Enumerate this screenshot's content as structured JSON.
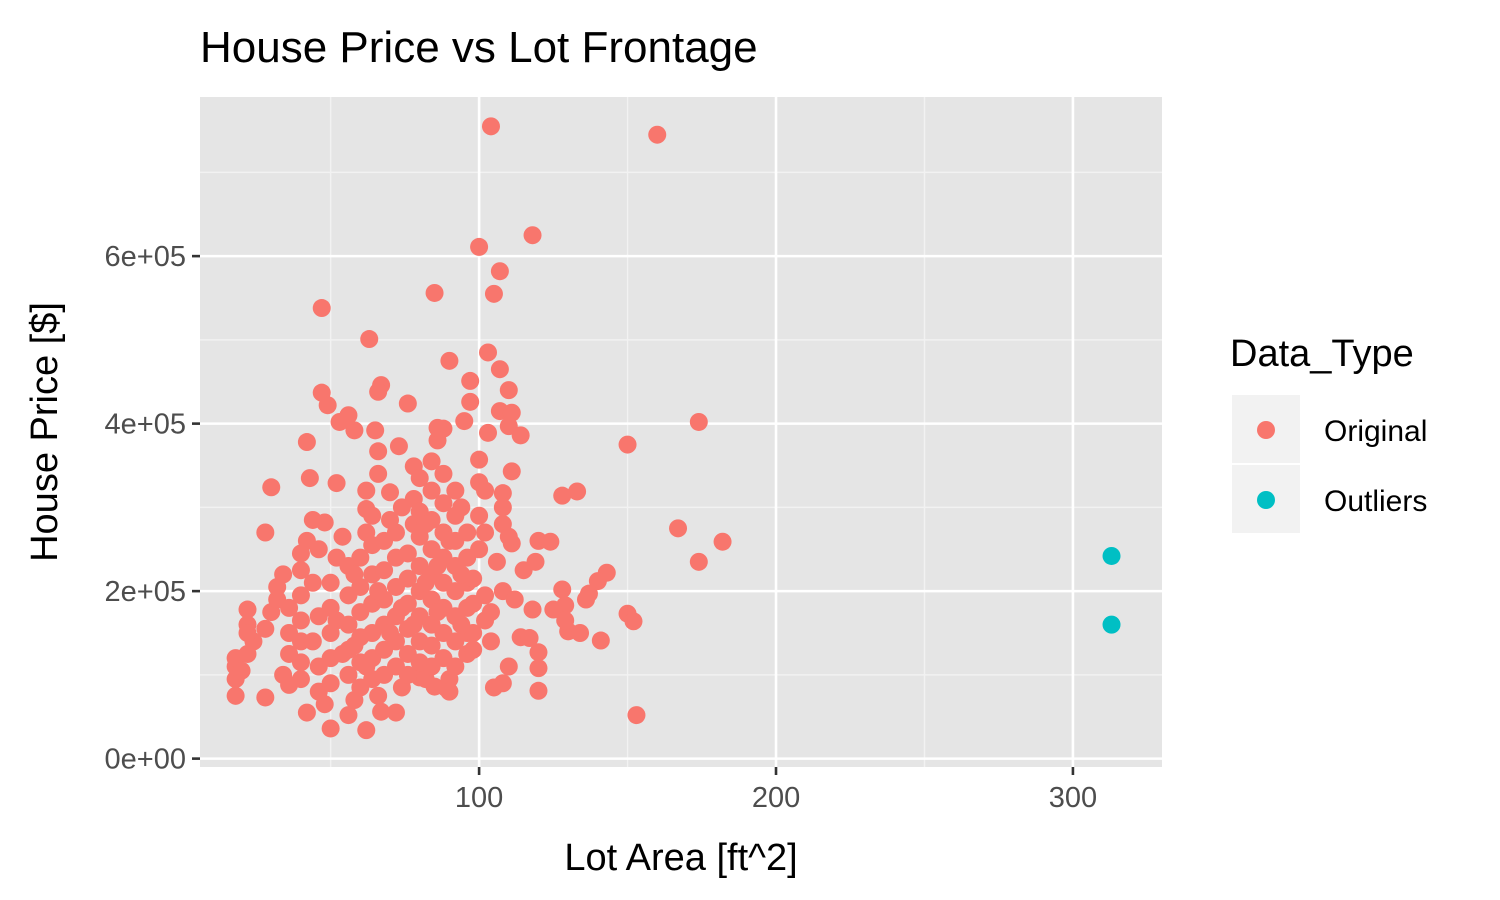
{
  "chart_data": {
    "type": "scatter",
    "title": "House Price vs Lot Frontage",
    "xlabel": "Lot Area [ft^2]",
    "ylabel": "House Price [$]",
    "xlim": [
      6,
      330
    ],
    "ylim": [
      -10000,
      790000
    ],
    "x_ticks": [
      100,
      200,
      300
    ],
    "x_tick_labels": [
      "100",
      "200",
      "300"
    ],
    "y_ticks": [
      0,
      200000,
      400000,
      600000
    ],
    "y_tick_labels": [
      "0e+00",
      "2e+05",
      "4e+05",
      "6e+05"
    ],
    "grid": true,
    "background": "#e5e5e5",
    "legend": {
      "title": "Data_Type",
      "placement": "right",
      "entries": [
        {
          "label": "Original",
          "color": "#f8766d"
        },
        {
          "label": "Outliers",
          "color": "#00bfc4"
        }
      ]
    },
    "series": [
      {
        "name": "Original",
        "color": "#f8766d",
        "points": [
          [
            104,
            755000
          ],
          [
            160,
            745000
          ],
          [
            118,
            625000
          ],
          [
            100,
            611000
          ],
          [
            107,
            582000
          ],
          [
            85,
            556000
          ],
          [
            105,
            555000
          ],
          [
            47,
            538000
          ],
          [
            63,
            501000
          ],
          [
            103,
            485000
          ],
          [
            90,
            475000
          ],
          [
            107,
            465000
          ],
          [
            97,
            451000
          ],
          [
            67,
            446000
          ],
          [
            110,
            440000
          ],
          [
            66,
            438000
          ],
          [
            47,
            437000
          ],
          [
            97,
            426000
          ],
          [
            76,
            424000
          ],
          [
            49,
            422000
          ],
          [
            107,
            415000
          ],
          [
            111,
            413000
          ],
          [
            56,
            410000
          ],
          [
            95,
            403000
          ],
          [
            174,
            402000
          ],
          [
            53,
            402000
          ],
          [
            110,
            397000
          ],
          [
            88,
            394000
          ],
          [
            58,
            392000
          ],
          [
            65,
            392000
          ],
          [
            103,
            389000
          ],
          [
            114,
            386000
          ],
          [
            42,
            378000
          ],
          [
            150,
            375000
          ],
          [
            73,
            373000
          ],
          [
            66,
            367000
          ],
          [
            100,
            357000
          ],
          [
            111,
            343000
          ],
          [
            78,
            349000
          ],
          [
            43,
            335000
          ],
          [
            52,
            329000
          ],
          [
            30,
            324000
          ],
          [
            133,
            319000
          ],
          [
            128,
            314000
          ],
          [
            108,
            317000
          ],
          [
            167,
            275000
          ],
          [
            182,
            259000
          ],
          [
            174,
            235000
          ],
          [
            28,
            270000
          ],
          [
            48,
            282000
          ],
          [
            62,
            298000
          ],
          [
            120,
            260000
          ],
          [
            124,
            259000
          ],
          [
            115,
            225000
          ],
          [
            119,
            235000
          ],
          [
            111,
            257000
          ],
          [
            128,
            202000
          ],
          [
            143,
            222000
          ],
          [
            140,
            212000
          ],
          [
            137,
            197000
          ],
          [
            129,
            183000
          ],
          [
            125,
            178000
          ],
          [
            118,
            178000
          ],
          [
            136,
            190000
          ],
          [
            150,
            173000
          ],
          [
            152,
            164000
          ],
          [
            130,
            152000
          ],
          [
            129,
            165000
          ],
          [
            134,
            150000
          ],
          [
            141,
            141000
          ],
          [
            153,
            52000
          ],
          [
            120,
            81000
          ],
          [
            120,
            108000
          ],
          [
            120,
            127000
          ],
          [
            108,
            90000
          ],
          [
            110,
            110000
          ],
          [
            114,
            145000
          ],
          [
            117,
            144000
          ],
          [
            105,
            85000
          ],
          [
            28,
            73000
          ],
          [
            42,
            55000
          ],
          [
            50,
            36000
          ],
          [
            62,
            34000
          ],
          [
            56,
            52000
          ],
          [
            72,
            55000
          ],
          [
            67,
            56000
          ],
          [
            89,
            84000
          ],
          [
            80,
            97000
          ],
          [
            85,
            86000
          ],
          [
            18,
            75000
          ],
          [
            18,
            95000
          ],
          [
            18,
            110000
          ],
          [
            18,
            120000
          ],
          [
            20,
            105000
          ],
          [
            22,
            125000
          ],
          [
            22,
            160000
          ],
          [
            22,
            178000
          ],
          [
            24,
            140000
          ],
          [
            22,
            150000
          ],
          [
            28,
            155000
          ],
          [
            30,
            175000
          ],
          [
            32,
            190000
          ],
          [
            32,
            205000
          ],
          [
            34,
            220000
          ],
          [
            36,
            180000
          ],
          [
            36,
            150000
          ],
          [
            36,
            125000
          ],
          [
            34,
            100000
          ],
          [
            36,
            88000
          ],
          [
            40,
            95000
          ],
          [
            40,
            115000
          ],
          [
            40,
            140000
          ],
          [
            40,
            165000
          ],
          [
            40,
            195000
          ],
          [
            40,
            225000
          ],
          [
            40,
            245000
          ],
          [
            42,
            260000
          ],
          [
            44,
            285000
          ],
          [
            46,
            250000
          ],
          [
            44,
            210000
          ],
          [
            46,
            170000
          ],
          [
            44,
            140000
          ],
          [
            46,
            110000
          ],
          [
            46,
            80000
          ],
          [
            48,
            65000
          ],
          [
            50,
            90000
          ],
          [
            50,
            120000
          ],
          [
            50,
            150000
          ],
          [
            50,
            180000
          ],
          [
            50,
            210000
          ],
          [
            52,
            240000
          ],
          [
            54,
            265000
          ],
          [
            56,
            230000
          ],
          [
            56,
            195000
          ],
          [
            56,
            160000
          ],
          [
            56,
            130000
          ],
          [
            56,
            100000
          ],
          [
            58,
            70000
          ],
          [
            60,
            85000
          ],
          [
            60,
            115000
          ],
          [
            60,
            145000
          ],
          [
            60,
            175000
          ],
          [
            60,
            205000
          ],
          [
            60,
            240000
          ],
          [
            62,
            270000
          ],
          [
            64,
            290000
          ],
          [
            64,
            255000
          ],
          [
            64,
            220000
          ],
          [
            64,
            185000
          ],
          [
            64,
            150000
          ],
          [
            64,
            120000
          ],
          [
            64,
            95000
          ],
          [
            66,
            75000
          ],
          [
            68,
            100000
          ],
          [
            68,
            130000
          ],
          [
            68,
            160000
          ],
          [
            68,
            190000
          ],
          [
            68,
            225000
          ],
          [
            68,
            260000
          ],
          [
            70,
            285000
          ],
          [
            70,
            318000
          ],
          [
            72,
            270000
          ],
          [
            72,
            240000
          ],
          [
            72,
            205000
          ],
          [
            72,
            170000
          ],
          [
            72,
            140000
          ],
          [
            72,
            110000
          ],
          [
            74,
            85000
          ],
          [
            76,
            100000
          ],
          [
            76,
            125000
          ],
          [
            76,
            155000
          ],
          [
            76,
            185000
          ],
          [
            76,
            215000
          ],
          [
            76,
            245000
          ],
          [
            78,
            280000
          ],
          [
            78,
            310000
          ],
          [
            80,
            335000
          ],
          [
            80,
            295000
          ],
          [
            80,
            265000
          ],
          [
            80,
            230000
          ],
          [
            80,
            200000
          ],
          [
            80,
            170000
          ],
          [
            80,
            140000
          ],
          [
            80,
            115000
          ],
          [
            82,
            95000
          ],
          [
            84,
            110000
          ],
          [
            84,
            135000
          ],
          [
            84,
            160000
          ],
          [
            84,
            190000
          ],
          [
            84,
            220000
          ],
          [
            84,
            250000
          ],
          [
            84,
            285000
          ],
          [
            84,
            320000
          ],
          [
            84,
            355000
          ],
          [
            86,
            380000
          ],
          [
            86,
            395000
          ],
          [
            88,
            340000
          ],
          [
            88,
            305000
          ],
          [
            88,
            270000
          ],
          [
            88,
            240000
          ],
          [
            88,
            210000
          ],
          [
            88,
            180000
          ],
          [
            88,
            150000
          ],
          [
            88,
            120000
          ],
          [
            90,
            95000
          ],
          [
            90,
            80000
          ],
          [
            92,
            110000
          ],
          [
            92,
            140000
          ],
          [
            92,
            170000
          ],
          [
            92,
            200000
          ],
          [
            92,
            230000
          ],
          [
            92,
            260000
          ],
          [
            92,
            290000
          ],
          [
            92,
            320000
          ],
          [
            94,
            300000
          ],
          [
            96,
            270000
          ],
          [
            96,
            240000
          ],
          [
            96,
            210000
          ],
          [
            96,
            180000
          ],
          [
            96,
            150000
          ],
          [
            96,
            125000
          ],
          [
            98,
            150000
          ],
          [
            98,
            185000
          ],
          [
            98,
            215000
          ],
          [
            100,
            250000
          ],
          [
            100,
            290000
          ],
          [
            100,
            330000
          ],
          [
            102,
            320000
          ],
          [
            102,
            270000
          ],
          [
            102,
            195000
          ],
          [
            102,
            165000
          ],
          [
            104,
            140000
          ],
          [
            104,
            175000
          ],
          [
            106,
            235000
          ],
          [
            108,
            200000
          ],
          [
            108,
            280000
          ],
          [
            108,
            300000
          ],
          [
            110,
            265000
          ],
          [
            112,
            190000
          ],
          [
            58,
            135000
          ],
          [
            62,
            110000
          ],
          [
            66,
            200000
          ],
          [
            70,
            150000
          ],
          [
            74,
            180000
          ],
          [
            78,
            160000
          ],
          [
            82,
            210000
          ],
          [
            86,
            230000
          ],
          [
            90,
            260000
          ],
          [
            94,
            220000
          ],
          [
            52,
            165000
          ],
          [
            54,
            125000
          ],
          [
            58,
            220000
          ],
          [
            74,
            300000
          ],
          [
            82,
            280000
          ],
          [
            86,
            175000
          ],
          [
            94,
            160000
          ],
          [
            98,
            130000
          ],
          [
            62,
            320000
          ],
          [
            66,
            340000
          ]
        ]
      },
      {
        "name": "Outliers",
        "color": "#00bfc4",
        "points": [
          [
            313,
            242000
          ],
          [
            313,
            160000
          ]
        ]
      }
    ]
  }
}
